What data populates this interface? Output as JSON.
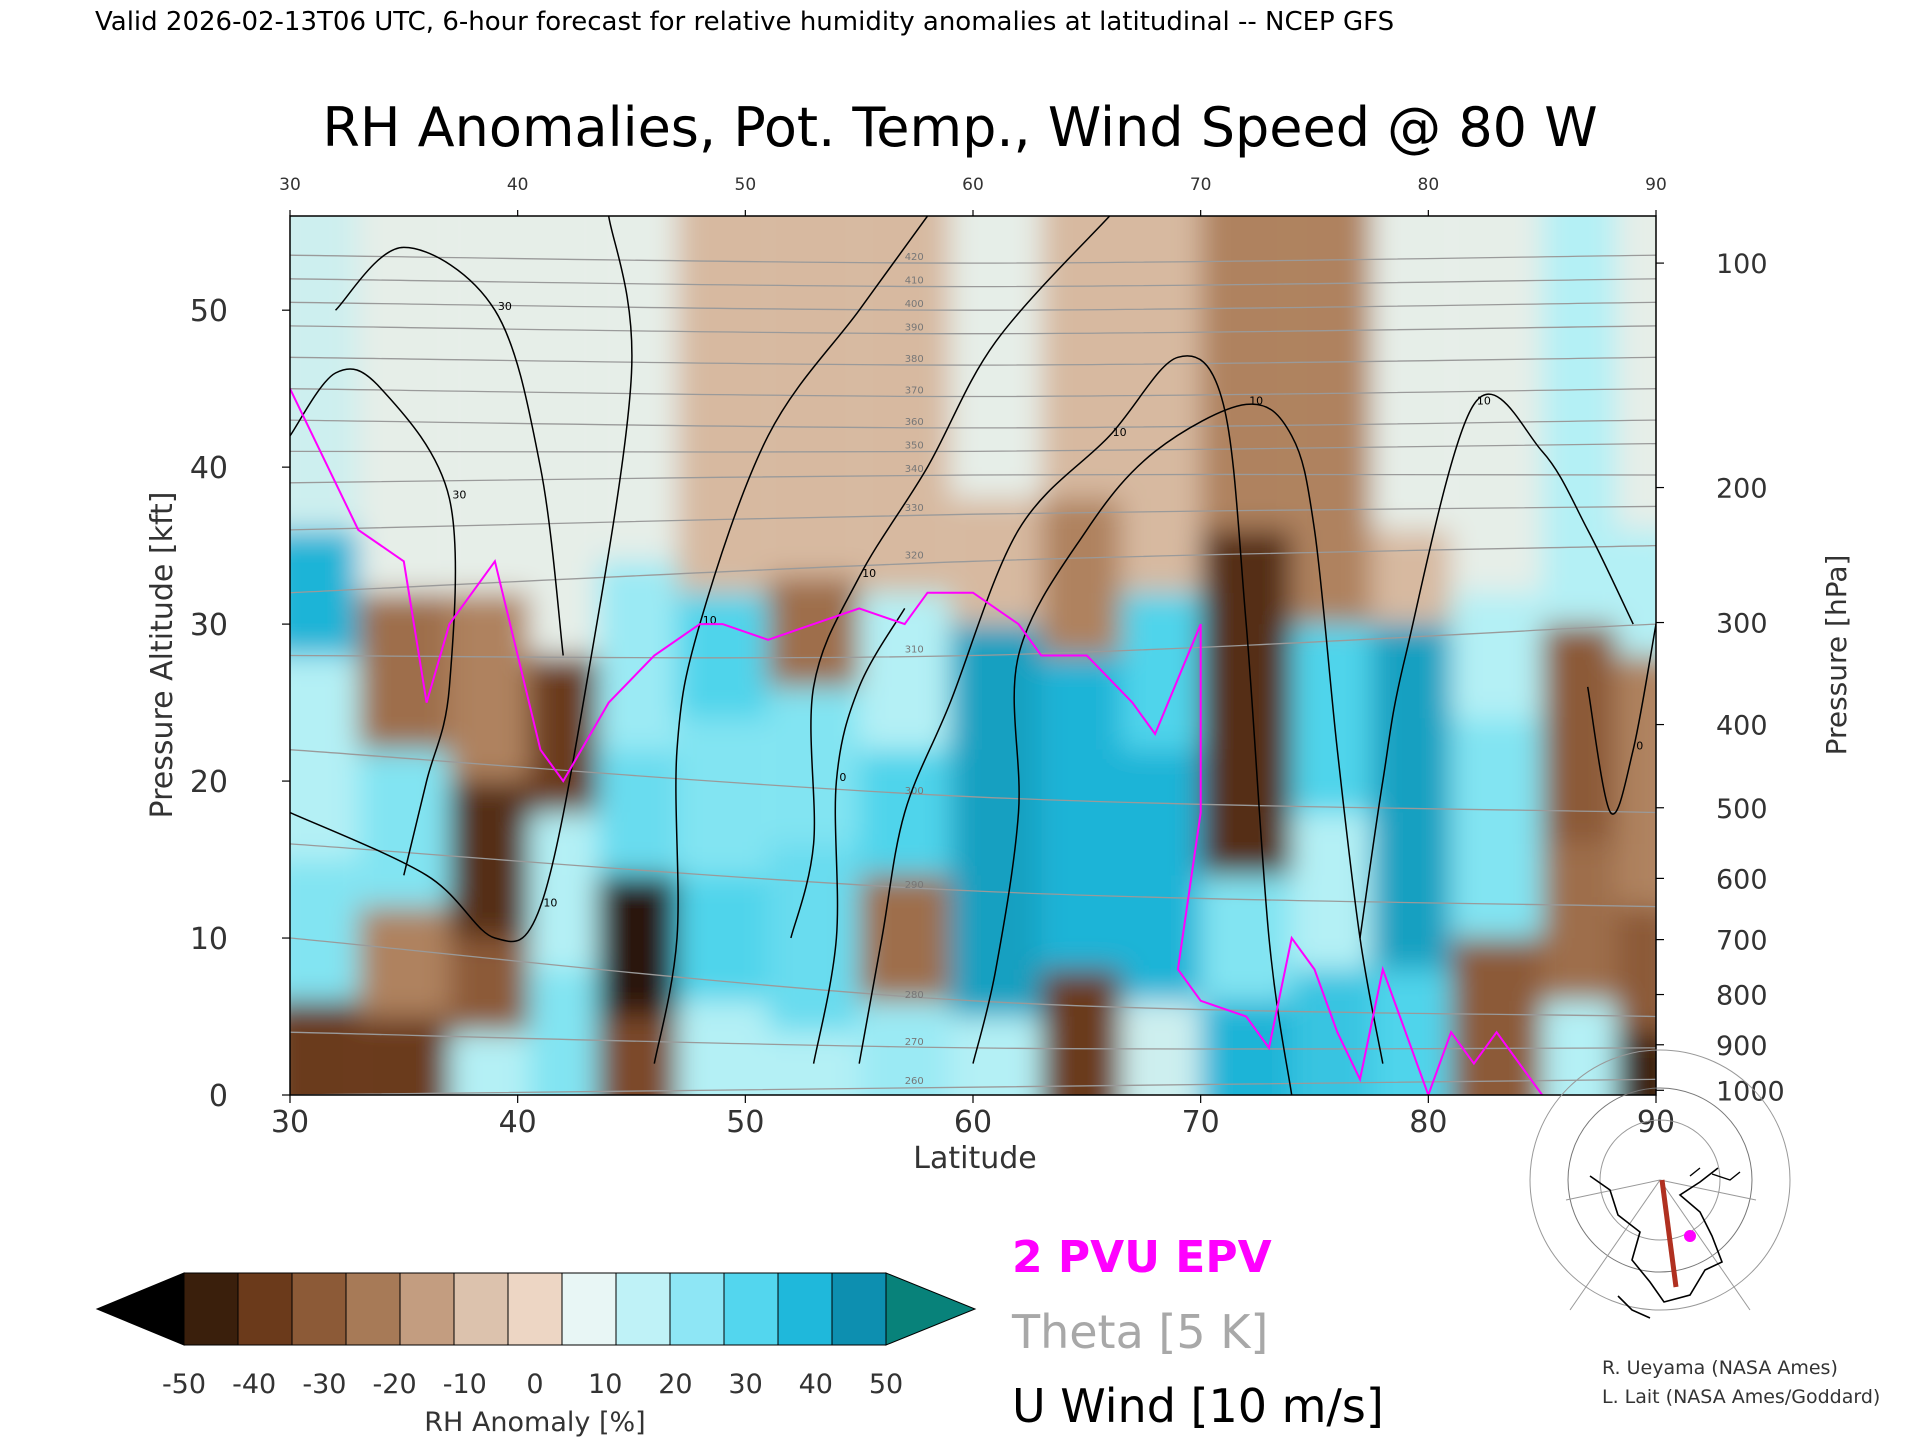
{
  "header": "Valid 2026-02-13T06 UTC, 6-hour forecast for relative humidity anomalies at latitudinal -- NCEP GFS",
  "chart_data": {
    "type": "heatmap",
    "title": "RH Anomalies, Pot. Temp., Wind Speed @ 80 W",
    "xlabel": "Latitude",
    "ylabel": "Pressure Altitude [kft]",
    "y2label": "Pressure [hPa]",
    "xlim": [
      30,
      90
    ],
    "ylim": [
      0,
      56
    ],
    "x_ticks": [
      30,
      40,
      50,
      60,
      70,
      80,
      90
    ],
    "y_ticks": [
      0,
      10,
      20,
      30,
      40,
      50
    ],
    "pressure_ticks": [
      {
        "label": "100",
        "kft": 53
      },
      {
        "label": "200",
        "kft": 38.7
      },
      {
        "label": "300",
        "kft": 30.1
      },
      {
        "label": "400",
        "kft": 23.6
      },
      {
        "label": "500",
        "kft": 18.3
      },
      {
        "label": "600",
        "kft": 13.8
      },
      {
        "label": "700",
        "kft": 9.9
      },
      {
        "label": "800",
        "kft": 6.4
      },
      {
        "label": "900",
        "kft": 3.2
      },
      {
        "label": "1000",
        "kft": 0.3
      }
    ],
    "rh_anomaly_columns": [
      {
        "lat": 31,
        "bands": [
          [
            0,
            6,
            -30
          ],
          [
            6,
            15,
            20
          ],
          [
            15,
            28,
            10
          ],
          [
            28,
            36,
            40
          ],
          [
            36,
            56,
            5
          ]
        ]
      },
      {
        "lat": 35,
        "bands": [
          [
            0,
            5,
            -30
          ],
          [
            5,
            12,
            -10
          ],
          [
            12,
            22,
            20
          ],
          [
            22,
            32,
            -15
          ],
          [
            32,
            56,
            0
          ]
        ]
      },
      {
        "lat": 39,
        "bands": [
          [
            0,
            4,
            10
          ],
          [
            4,
            10,
            -20
          ],
          [
            10,
            20,
            -35
          ],
          [
            20,
            32,
            -10
          ],
          [
            32,
            56,
            0
          ]
        ]
      },
      {
        "lat": 42,
        "bands": [
          [
            0,
            8,
            20
          ],
          [
            8,
            18,
            10
          ],
          [
            18,
            28,
            -30
          ],
          [
            28,
            56,
            0
          ]
        ]
      },
      {
        "lat": 45,
        "bands": [
          [
            0,
            5,
            -25
          ],
          [
            5,
            14,
            -45
          ],
          [
            14,
            22,
            25
          ],
          [
            22,
            34,
            15
          ],
          [
            34,
            56,
            0
          ]
        ]
      },
      {
        "lat": 49,
        "bands": [
          [
            0,
            6,
            10
          ],
          [
            6,
            14,
            30
          ],
          [
            14,
            24,
            20
          ],
          [
            24,
            32,
            30
          ],
          [
            32,
            56,
            -5
          ]
        ]
      },
      {
        "lat": 53,
        "bands": [
          [
            0,
            4,
            10
          ],
          [
            4,
            16,
            25
          ],
          [
            16,
            26,
            20
          ],
          [
            26,
            33,
            -15
          ],
          [
            33,
            56,
            -5
          ]
        ]
      },
      {
        "lat": 57,
        "bands": [
          [
            0,
            6,
            15
          ],
          [
            6,
            14,
            -15
          ],
          [
            14,
            22,
            30
          ],
          [
            22,
            32,
            10
          ],
          [
            32,
            56,
            -5
          ]
        ]
      },
      {
        "lat": 61,
        "bands": [
          [
            0,
            5,
            10
          ],
          [
            5,
            30,
            45
          ],
          [
            30,
            38,
            -5
          ],
          [
            38,
            56,
            0
          ]
        ]
      },
      {
        "lat": 65,
        "bands": [
          [
            0,
            8,
            -30
          ],
          [
            8,
            28,
            40
          ],
          [
            28,
            38,
            -10
          ],
          [
            38,
            56,
            -5
          ]
        ]
      },
      {
        "lat": 68,
        "bands": [
          [
            0,
            6,
            5
          ],
          [
            6,
            22,
            40
          ],
          [
            22,
            32,
            30
          ],
          [
            32,
            56,
            -5
          ]
        ]
      },
      {
        "lat": 72,
        "bands": [
          [
            0,
            6,
            40
          ],
          [
            6,
            14,
            20
          ],
          [
            14,
            36,
            -35
          ],
          [
            36,
            56,
            -10
          ]
        ]
      },
      {
        "lat": 76,
        "bands": [
          [
            0,
            8,
            35
          ],
          [
            8,
            18,
            10
          ],
          [
            18,
            30,
            30
          ],
          [
            30,
            56,
            -10
          ]
        ]
      },
      {
        "lat": 79,
        "bands": [
          [
            0,
            8,
            30
          ],
          [
            8,
            30,
            45
          ],
          [
            30,
            36,
            -5
          ],
          [
            36,
            56,
            0
          ]
        ]
      },
      {
        "lat": 83,
        "bands": [
          [
            0,
            10,
            -20
          ],
          [
            10,
            24,
            20
          ],
          [
            24,
            32,
            10
          ],
          [
            32,
            56,
            0
          ]
        ]
      },
      {
        "lat": 87,
        "bands": [
          [
            0,
            6,
            10
          ],
          [
            6,
            16,
            -15
          ],
          [
            16,
            30,
            -20
          ],
          [
            30,
            56,
            10
          ]
        ]
      },
      {
        "lat": 89.5,
        "bands": [
          [
            0,
            4,
            -40
          ],
          [
            4,
            12,
            -20
          ],
          [
            12,
            28,
            -10
          ],
          [
            28,
            36,
            10
          ],
          [
            36,
            56,
            0
          ]
        ]
      }
    ],
    "theta_contour_labels": [
      "260",
      "270",
      "280",
      "290",
      "300",
      "310",
      "320",
      "330",
      "340",
      "350",
      "360",
      "370",
      "380",
      "390",
      "400",
      "410",
      "420"
    ],
    "theta_contours": [
      {
        "label": "260",
        "points": [
          [
            30,
            0
          ],
          [
            60,
            0.5
          ],
          [
            90,
            1
          ]
        ]
      },
      {
        "label": "270",
        "points": [
          [
            30,
            4
          ],
          [
            60,
            3
          ],
          [
            90,
            3
          ]
        ]
      },
      {
        "label": "280",
        "points": [
          [
            30,
            10
          ],
          [
            60,
            6
          ],
          [
            90,
            5
          ]
        ]
      },
      {
        "label": "290",
        "points": [
          [
            30,
            16
          ],
          [
            60,
            13
          ],
          [
            90,
            12
          ]
        ]
      },
      {
        "label": "300",
        "points": [
          [
            30,
            22
          ],
          [
            60,
            19
          ],
          [
            90,
            18
          ]
        ]
      },
      {
        "label": "310",
        "points": [
          [
            30,
            28
          ],
          [
            60,
            28
          ],
          [
            90,
            30
          ]
        ]
      },
      {
        "label": "320",
        "points": [
          [
            30,
            32
          ],
          [
            60,
            34
          ],
          [
            90,
            35
          ]
        ]
      },
      {
        "label": "330",
        "points": [
          [
            30,
            36
          ],
          [
            60,
            37
          ],
          [
            90,
            37.5
          ]
        ]
      },
      {
        "label": "340",
        "points": [
          [
            30,
            39
          ],
          [
            60,
            39.5
          ],
          [
            90,
            39.5
          ]
        ]
      },
      {
        "label": "350",
        "points": [
          [
            30,
            41
          ],
          [
            60,
            41
          ],
          [
            90,
            41.5
          ]
        ]
      },
      {
        "label": "360",
        "points": [
          [
            30,
            43
          ],
          [
            60,
            42.5
          ],
          [
            90,
            43
          ]
        ]
      },
      {
        "label": "370",
        "points": [
          [
            30,
            45
          ],
          [
            60,
            44.5
          ],
          [
            90,
            45
          ]
        ]
      },
      {
        "label": "380",
        "points": [
          [
            30,
            47
          ],
          [
            60,
            46.5
          ],
          [
            90,
            47
          ]
        ]
      },
      {
        "label": "390",
        "points": [
          [
            30,
            49
          ],
          [
            60,
            48.5
          ],
          [
            90,
            49
          ]
        ]
      },
      {
        "label": "400",
        "points": [
          [
            30,
            50.5
          ],
          [
            60,
            50
          ],
          [
            90,
            50.5
          ]
        ]
      },
      {
        "label": "410",
        "points": [
          [
            30,
            52
          ],
          [
            60,
            51.5
          ],
          [
            90,
            52
          ]
        ]
      },
      {
        "label": "420",
        "points": [
          [
            30,
            53.5
          ],
          [
            60,
            53
          ],
          [
            90,
            53.5
          ]
        ]
      }
    ],
    "u_wind_contours": [
      {
        "label": "30",
        "points": [
          [
            30,
            42
          ],
          [
            32,
            46
          ],
          [
            34,
            45
          ],
          [
            37,
            38
          ],
          [
            37,
            26
          ],
          [
            36,
            20
          ],
          [
            35,
            14
          ]
        ]
      },
      {
        "label": "30",
        "points": [
          [
            32,
            50
          ],
          [
            35,
            54
          ],
          [
            39,
            50
          ],
          [
            41,
            40
          ],
          [
            42,
            28
          ]
        ]
      },
      {
        "label": "10",
        "points": [
          [
            30,
            18
          ],
          [
            36,
            14
          ],
          [
            39,
            10
          ],
          [
            41,
            12
          ],
          [
            43,
            26
          ],
          [
            45,
            46
          ],
          [
            44,
            56
          ]
        ]
      },
      {
        "label": "10",
        "points": [
          [
            46,
            2
          ],
          [
            47,
            10
          ],
          [
            47,
            22
          ],
          [
            48,
            30
          ],
          [
            51,
            42
          ],
          [
            55,
            50
          ],
          [
            58,
            56
          ]
        ]
      },
      {
        "label": "0",
        "points": [
          [
            53,
            2
          ],
          [
            54,
            10
          ],
          [
            54,
            20
          ],
          [
            55,
            26
          ],
          [
            57,
            31
          ]
        ]
      },
      {
        "label": "10",
        "points": [
          [
            52,
            10
          ],
          [
            53,
            16
          ],
          [
            53,
            26
          ],
          [
            55,
            33
          ],
          [
            58,
            40
          ],
          [
            61,
            48
          ],
          [
            66,
            56
          ]
        ]
      },
      {
        "label": "10",
        "points": [
          [
            55,
            2
          ],
          [
            56,
            10
          ],
          [
            57,
            18
          ],
          [
            59,
            25
          ],
          [
            62,
            36
          ],
          [
            66,
            42
          ],
          [
            69,
            47
          ],
          [
            71,
            44
          ],
          [
            72,
            30
          ],
          [
            73,
            10
          ],
          [
            74,
            0
          ]
        ]
      },
      {
        "label": "10",
        "points": [
          [
            60,
            2
          ],
          [
            61,
            8
          ],
          [
            62,
            18
          ],
          [
            62,
            28
          ],
          [
            65,
            36
          ],
          [
            68,
            41
          ],
          [
            72,
            44
          ],
          [
            74,
            42
          ],
          [
            75,
            36
          ],
          [
            76,
            22
          ],
          [
            77,
            10
          ],
          [
            78,
            2
          ]
        ]
      },
      {
        "label": "10",
        "points": [
          [
            77,
            10
          ],
          [
            78,
            20
          ],
          [
            79,
            28
          ],
          [
            82,
            44
          ],
          [
            85,
            41
          ],
          [
            87,
            36
          ],
          [
            89,
            30
          ]
        ]
      },
      {
        "label": "0",
        "points": [
          [
            87,
            26
          ],
          [
            88,
            18
          ],
          [
            89,
            22
          ],
          [
            90,
            30
          ]
        ]
      }
    ],
    "epv_2pvu_line": [
      [
        30,
        45
      ],
      [
        31,
        42
      ],
      [
        33,
        36
      ],
      [
        35,
        34
      ],
      [
        36,
        25
      ],
      [
        37,
        30
      ],
      [
        39,
        34
      ],
      [
        40,
        28
      ],
      [
        41,
        22
      ],
      [
        42,
        20
      ],
      [
        44,
        25
      ],
      [
        46,
        28
      ],
      [
        48,
        30
      ],
      [
        49,
        30
      ],
      [
        51,
        29
      ],
      [
        53,
        30
      ],
      [
        55,
        31
      ],
      [
        57,
        30
      ],
      [
        58,
        32
      ],
      [
        60,
        32
      ],
      [
        62,
        30
      ],
      [
        63,
        28
      ],
      [
        65,
        28
      ],
      [
        67,
        25
      ],
      [
        68,
        23
      ],
      [
        70,
        30
      ],
      [
        70,
        18
      ],
      [
        69,
        8
      ],
      [
        70,
        6
      ],
      [
        72,
        5
      ],
      [
        73,
        3
      ],
      [
        74,
        10
      ],
      [
        75,
        8
      ],
      [
        76,
        4
      ],
      [
        77,
        1
      ],
      [
        78,
        8
      ],
      [
        79,
        4
      ],
      [
        80,
        0
      ],
      [
        81,
        4
      ],
      [
        82,
        2
      ],
      [
        83,
        4
      ],
      [
        84,
        2
      ],
      [
        85,
        0
      ]
    ],
    "colorbar": {
      "label": "RH Anomaly [%]",
      "ticks": [
        "-50",
        "-40",
        "-30",
        "-20",
        "-10",
        "0",
        "10",
        "20",
        "30",
        "40",
        "50"
      ],
      "colors": [
        "#000000",
        "#3a1f0c",
        "#6b3a1b",
        "#8c5a37",
        "#a77a57",
        "#c39d80",
        "#dcc2ad",
        "#edd6c4",
        "#e8f6f5",
        "#bff2f7",
        "#8ee6f5",
        "#53d6ee",
        "#1fb8db",
        "#0d8fb0",
        "#08827a"
      ],
      "extend": "both"
    },
    "legend": [
      {
        "label": "2 PVU EPV",
        "color": "#ff00ff"
      },
      {
        "label": "Theta [5 K]",
        "color": "#a8a8a8"
      },
      {
        "label": "U Wind [10 m/s]",
        "color": "#000000"
      }
    ],
    "credits": [
      "R. Ueyama (NASA Ames)",
      "L. Lait (NASA Ames/Goddard)"
    ],
    "inset_map": {
      "section_color": "#b03020",
      "marker_color": "#ff00ff"
    }
  }
}
